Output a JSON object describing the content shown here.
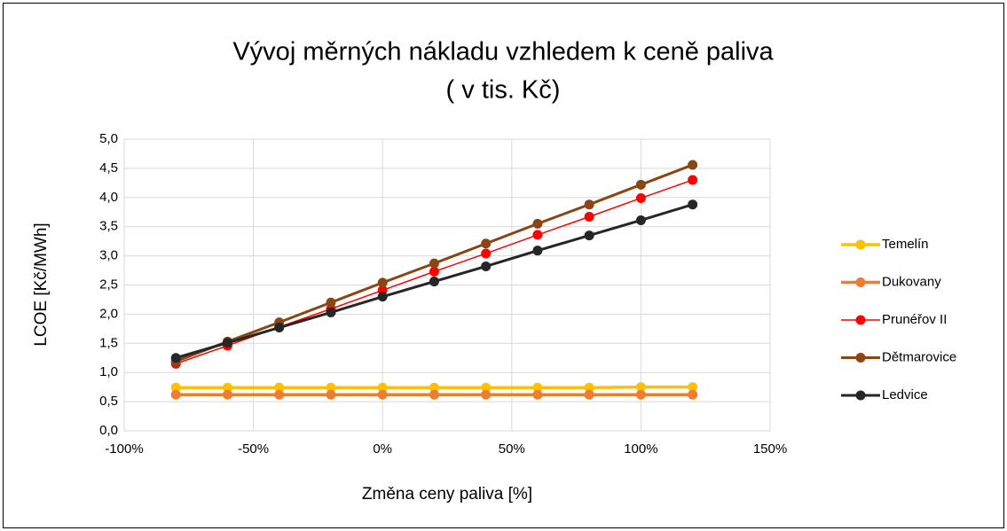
{
  "chart_data": {
    "type": "line",
    "title": "Vývoj měrných nákladu vzhledem k ceně paliva",
    "subtitle": "( v tis. Kč)",
    "x_label": "Změna ceny paliva [%]",
    "y_label": "LCOE [Kč/MWh]",
    "x": [
      -80,
      -60,
      -40,
      -20,
      0,
      20,
      40,
      60,
      80,
      100,
      120
    ],
    "series": [
      {
        "name": "Temelín",
        "color": "#ffc000",
        "values": [
          0.74,
          0.74,
          0.74,
          0.74,
          0.74,
          0.74,
          0.74,
          0.74,
          0.74,
          0.75,
          0.75
        ]
      },
      {
        "name": "Dukovany",
        "color": "#ed7d31",
        "values": [
          0.62,
          0.62,
          0.62,
          0.62,
          0.62,
          0.62,
          0.62,
          0.62,
          0.62,
          0.62,
          0.62
        ]
      },
      {
        "name": "Prunéřov II",
        "color": "#ff0000",
        "values": [
          1.15,
          1.46,
          1.78,
          2.09,
          2.41,
          2.73,
          3.04,
          3.36,
          3.67,
          3.99,
          4.3
        ]
      },
      {
        "name": "Dětmarovice",
        "color": "#8b4513",
        "values": [
          1.19,
          1.53,
          1.86,
          2.2,
          2.54,
          2.87,
          3.21,
          3.55,
          3.88,
          4.22,
          4.56
        ]
      },
      {
        "name": "Ledvice",
        "color": "#262626",
        "values": [
          1.25,
          1.51,
          1.77,
          2.03,
          2.3,
          2.56,
          2.82,
          3.09,
          3.35,
          3.61,
          3.88
        ]
      }
    ],
    "xlim": [
      -100,
      150
    ],
    "xticks": [
      {
        "value": -100,
        "label": "-100%"
      },
      {
        "value": -50,
        "label": "-50%"
      },
      {
        "value": 0,
        "label": "0%"
      },
      {
        "value": 50,
        "label": "50%"
      },
      {
        "value": 100,
        "label": "100%"
      },
      {
        "value": 150,
        "label": "150%"
      }
    ],
    "ylim": [
      0,
      5
    ],
    "yticks": [
      {
        "value": 0,
        "label": "0,0"
      },
      {
        "value": 0.5,
        "label": "0,5"
      },
      {
        "value": 1,
        "label": "1,0"
      },
      {
        "value": 1.5,
        "label": "1,5"
      },
      {
        "value": 2,
        "label": "2,0"
      },
      {
        "value": 2.5,
        "label": "2,5"
      },
      {
        "value": 3,
        "label": "3,0"
      },
      {
        "value": 3.5,
        "label": "3,5"
      },
      {
        "value": 4,
        "label": "4,0"
      },
      {
        "value": 4.5,
        "label": "4,5"
      },
      {
        "value": 5,
        "label": "5,0"
      }
    ],
    "grid": true,
    "legend": "right"
  }
}
